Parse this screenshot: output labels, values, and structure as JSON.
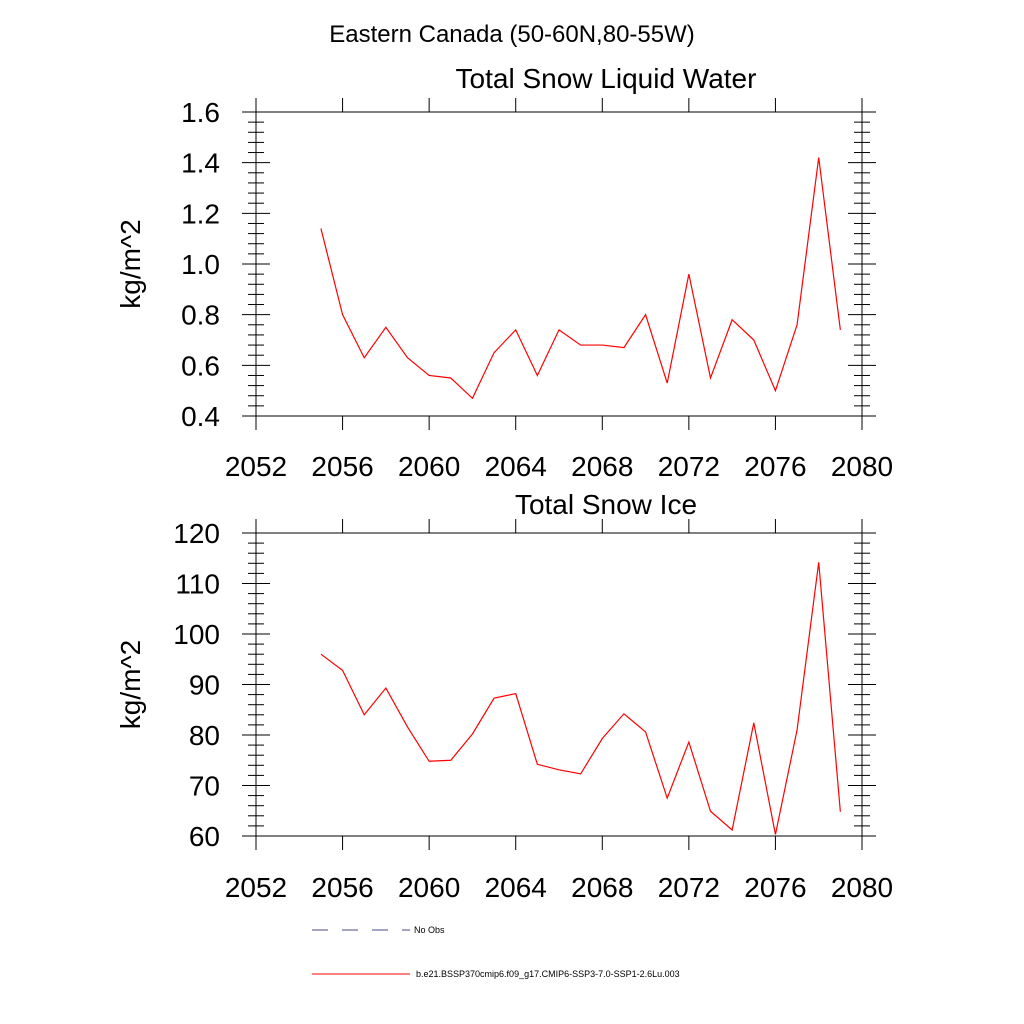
{
  "main_title": "Eastern Canada (50-60N,80-55W)",
  "legend": [
    {
      "label": "No Obs",
      "color": "#4a4a8a",
      "style": "dashed"
    },
    {
      "label": "b.e21.BSSP370cmip6.f09_g17.CMIP6-SSP3-7.0-SSP1-2.6Lu.003",
      "color": "#ff0000",
      "style": "solid"
    }
  ],
  "chart_data": [
    {
      "type": "line",
      "title": "Total Snow Liquid Water",
      "xlabel": "",
      "ylabel": "kg/m^2",
      "xlim": [
        2052,
        2080
      ],
      "ylim": [
        0.4,
        1.6
      ],
      "xticks": [
        "2052",
        "2056",
        "2060",
        "2064",
        "2068",
        "2072",
        "2076",
        "2080"
      ],
      "yticks": [
        "0.4",
        "0.6",
        "0.8",
        "1.0",
        "1.2",
        "1.4",
        "1.6"
      ],
      "x": [
        2055,
        2056,
        2057,
        2058,
        2059,
        2060,
        2061,
        2062,
        2063,
        2064,
        2065,
        2066,
        2067,
        2068,
        2069,
        2070,
        2071,
        2072,
        2073,
        2074,
        2075,
        2076,
        2077,
        2078,
        2079
      ],
      "series": [
        {
          "color": "#ff0000",
          "values": [
            1.14,
            0.8,
            0.63,
            0.75,
            0.63,
            0.56,
            0.55,
            0.47,
            0.65,
            0.74,
            0.56,
            0.74,
            0.68,
            0.68,
            0.67,
            0.8,
            0.53,
            0.96,
            0.55,
            0.78,
            0.7,
            0.5,
            0.76,
            1.42,
            0.74
          ]
        }
      ]
    },
    {
      "type": "line",
      "title": "Total Snow Ice",
      "xlabel": "",
      "ylabel": "kg/m^2",
      "xlim": [
        2052,
        2080
      ],
      "ylim": [
        60,
        120
      ],
      "xticks": [
        "2052",
        "2056",
        "2060",
        "2064",
        "2068",
        "2072",
        "2076",
        "2080"
      ],
      "yticks": [
        "60",
        "70",
        "80",
        "90",
        "100",
        "110",
        "120"
      ],
      "x": [
        2055,
        2056,
        2057,
        2058,
        2059,
        2060,
        2061,
        2062,
        2063,
        2064,
        2065,
        2066,
        2067,
        2068,
        2069,
        2070,
        2071,
        2072,
        2073,
        2074,
        2075,
        2076,
        2077,
        2078,
        2079
      ],
      "series": [
        {
          "color": "#ff0000",
          "values": [
            96.0,
            92.8,
            84.0,
            89.3,
            81.6,
            74.8,
            75.0,
            80.2,
            87.3,
            88.2,
            74.2,
            73.1,
            72.3,
            79.3,
            84.2,
            80.6,
            67.5,
            78.6,
            64.9,
            61.2,
            82.4,
            60.3,
            81.0,
            114.2,
            64.8
          ]
        }
      ]
    }
  ]
}
